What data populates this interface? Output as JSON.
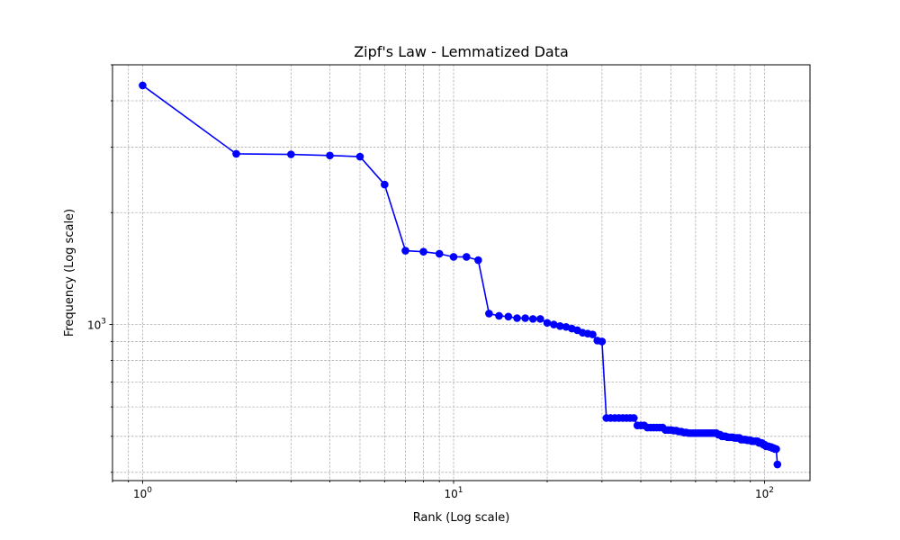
{
  "chart_data": {
    "type": "line",
    "title": "Zipf's Law - Lemmatized Data",
    "xlabel": "Rank (Log scale)",
    "ylabel": "Frequency (Log scale)",
    "xscale": "log",
    "yscale": "log",
    "xlim": [
      0.8,
      140
    ],
    "ylim": [
      380,
      5000
    ],
    "grid": true,
    "x_ticks": [
      {
        "base": "10",
        "exp": "0",
        "value": 1
      },
      {
        "base": "10",
        "exp": "1",
        "value": 10
      },
      {
        "base": "10",
        "exp": "2",
        "value": 100
      }
    ],
    "y_ticks": [
      {
        "base": "10",
        "exp": "3",
        "value": 1000
      }
    ],
    "series": [
      {
        "color": "#0000ff",
        "marker": "circle",
        "x": [
          1,
          2,
          3,
          4,
          5,
          6,
          7,
          8,
          9,
          10,
          11,
          12,
          13,
          14,
          15,
          16,
          17,
          18,
          19,
          20,
          21,
          22,
          23,
          24,
          25,
          26,
          27,
          28,
          29,
          30,
          31,
          32,
          33,
          34,
          35,
          36,
          37,
          38,
          39,
          40,
          41,
          42,
          43,
          44,
          45,
          46,
          47,
          48,
          49,
          50,
          51,
          52,
          53,
          54,
          55,
          56,
          57,
          58,
          59,
          60,
          61,
          62,
          63,
          64,
          65,
          66,
          67,
          68,
          69,
          70,
          71,
          72,
          73,
          74,
          75,
          76,
          77,
          78,
          79,
          80,
          81,
          82,
          83,
          84,
          85,
          86,
          87,
          88,
          89,
          90,
          91,
          92,
          93,
          94,
          95,
          96,
          97,
          98,
          99,
          100,
          101,
          102,
          103,
          104,
          105,
          106,
          107,
          108,
          109,
          110
        ],
        "y": [
          4400,
          2880,
          2870,
          2850,
          2830,
          2380,
          1580,
          1570,
          1550,
          1520,
          1520,
          1490,
          1070,
          1055,
          1050,
          1040,
          1040,
          1035,
          1035,
          1010,
          1000,
          990,
          985,
          975,
          965,
          950,
          945,
          940,
          905,
          900,
          560,
          560,
          560,
          560,
          560,
          560,
          560,
          560,
          535,
          535,
          535,
          528,
          528,
          528,
          528,
          528,
          528,
          520,
          520,
          520,
          518,
          518,
          515,
          515,
          512,
          512,
          510,
          510,
          510,
          510,
          510,
          510,
          510,
          510,
          510,
          510,
          510,
          510,
          510,
          510,
          505,
          505,
          500,
          500,
          500,
          497,
          497,
          497,
          497,
          495,
          495,
          495,
          495,
          490,
          490,
          490,
          490,
          488,
          488,
          488,
          485,
          485,
          485,
          485,
          485,
          480,
          480,
          480,
          475,
          475,
          470,
          470,
          470,
          468,
          468,
          465,
          465,
          462,
          462,
          420
        ]
      }
    ]
  }
}
